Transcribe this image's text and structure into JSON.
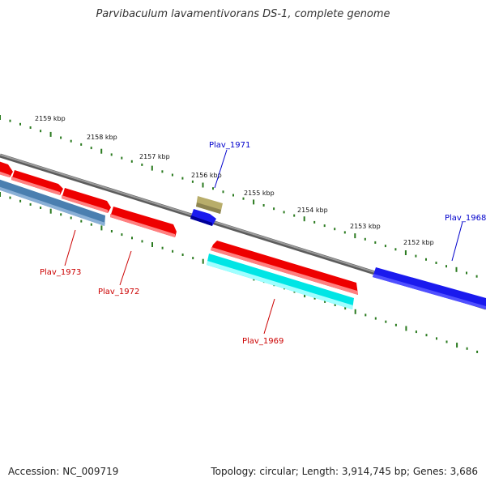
{
  "title": "Parvibaculum lavamentivorans DS-1, complete genome",
  "footer": {
    "accession": "Accession: NC_009719",
    "summary": "Topology: circular; Length: 3,914,745 bp; Genes: 3,686"
  },
  "ruler": {
    "tick_labels": [
      "2159 kbp",
      "2158 kbp",
      "2157 kbp",
      "2156 kbp",
      "2155 kbp",
      "2154 kbp",
      "2153 kbp",
      "2152 kbp"
    ],
    "tick_color": "#2a7a1f"
  },
  "genes": [
    {
      "id": "unlabeled-red-1",
      "label": "",
      "strand": "+",
      "color": "#ff0000"
    },
    {
      "id": "unlabeled-red-2",
      "label": "",
      "strand": "+",
      "color": "#ff0000"
    },
    {
      "id": "unlabeled-red-3",
      "label": "",
      "strand": "+",
      "color": "#ff0000"
    },
    {
      "id": "Plav_1973",
      "label": "Plav_1973",
      "strand": "-",
      "color": "#4a7fb0"
    },
    {
      "id": "Plav_1972",
      "label": "Plav_1972",
      "strand": "+",
      "color": "#ff0000"
    },
    {
      "id": "Plav_1971",
      "label": "Plav_1971",
      "strand": "+",
      "color": "#b8ad6a"
    },
    {
      "id": "unlabeled-blue",
      "label": "",
      "strand": "+",
      "color": "#0000ee"
    },
    {
      "id": "unlabeled-red-4",
      "label": "",
      "strand": "-",
      "color": "#ff0000"
    },
    {
      "id": "Plav_1969",
      "label": "Plav_1969",
      "strand": "-",
      "color": "#00e5e5"
    },
    {
      "id": "Plav_1968",
      "label": "Plav_1968",
      "strand": "+",
      "color": "#0000ee"
    }
  ],
  "colors": {
    "backbone": "#7f7f7f",
    "label_plus": "#0000cc",
    "label_minus": "#cc0000"
  }
}
